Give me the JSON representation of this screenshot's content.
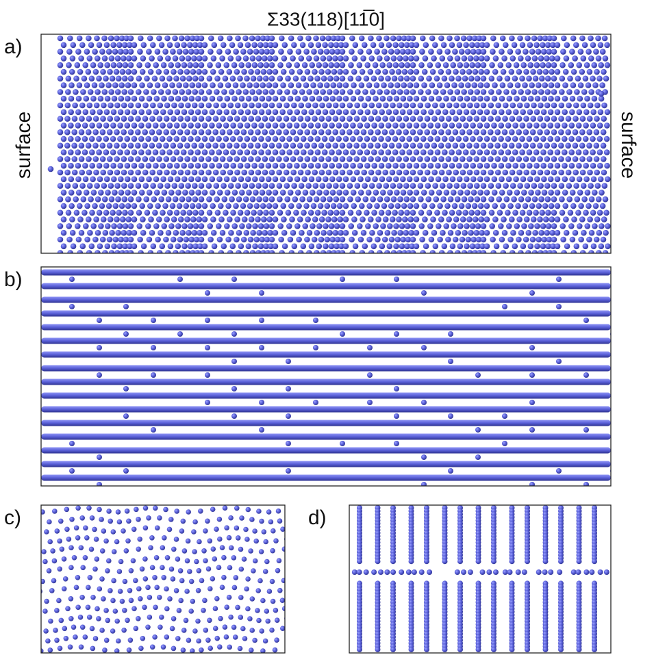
{
  "title": "Σ33(118)[11̅0]",
  "panels": [
    {
      "label": "a)",
      "left_label": "surface",
      "right_label": "surface"
    },
    {
      "label": "b)"
    },
    {
      "label": "c)"
    },
    {
      "label": "d)"
    }
  ]
}
